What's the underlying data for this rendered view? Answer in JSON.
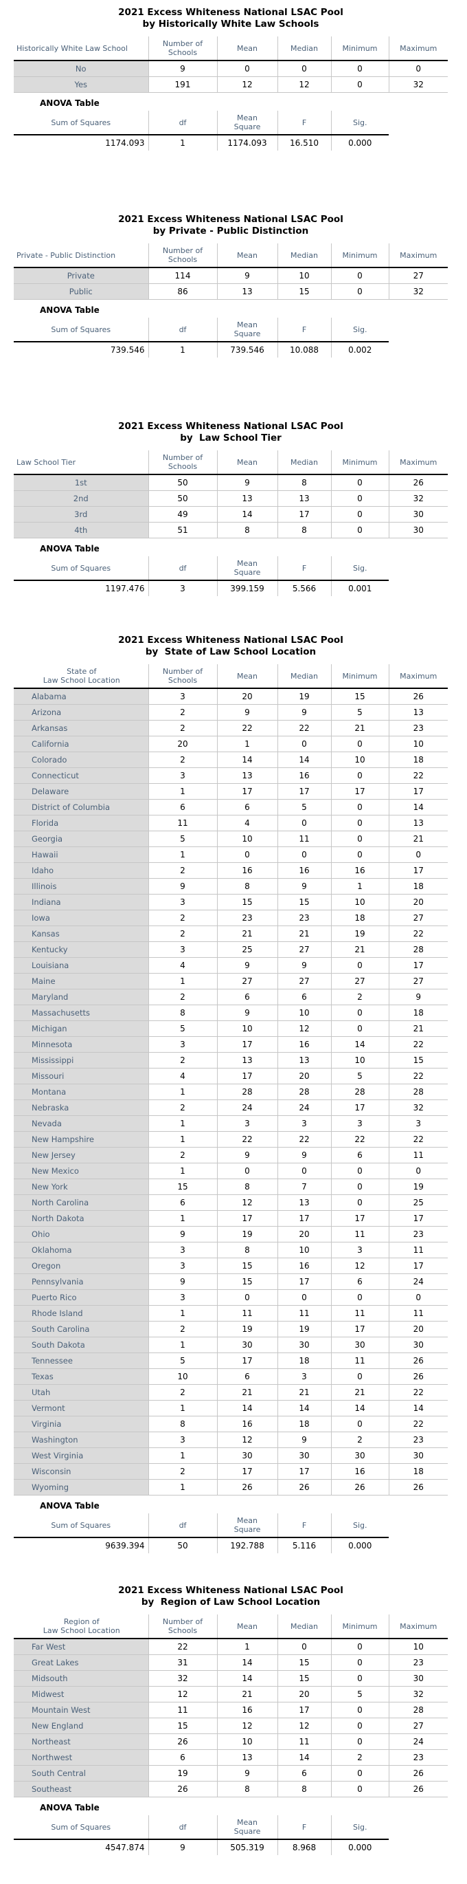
{
  "colors": {
    "header_text": "#4a6078",
    "label_background": "#dbdbdb",
    "grid_line": "#c6c6c6",
    "header_rule": "#000000"
  },
  "report": {
    "sections": [
      {
        "title": {
          "line1": "2021 Excess Whiteness National LSAC Pool",
          "line2": "by Historically White Law Schools"
        },
        "group_header": "Historically White Law School",
        "columns": [
          "Number of\nSchools",
          "Mean",
          "Median",
          "Minimum",
          "Maximum"
        ],
        "rows": [
          {
            "label": "No",
            "values": [
              9,
              0,
              0,
              0,
              0
            ]
          },
          {
            "label": "Yes",
            "values": [
              191,
              12,
              12,
              0,
              32
            ]
          }
        ],
        "anova": {
          "heading": "ANOVA Table",
          "columns": [
            "Sum of Squares",
            "df",
            "Mean\nSquare",
            "F",
            "Sig."
          ],
          "values": [
            "1174.093",
            "1",
            "1174.093",
            "16.510",
            "0.000"
          ]
        }
      },
      {
        "title": {
          "line1": "2021 Excess Whiteness National LSAC Pool",
          "line2": "by Private - Public Distinction"
        },
        "group_header": "Private - Public Distinction",
        "columns": [
          "Number of\nSchools",
          "Mean",
          "Median",
          "Minimum",
          "Maximum"
        ],
        "rows": [
          {
            "label": "Private",
            "values": [
              114,
              9,
              10,
              0,
              27
            ]
          },
          {
            "label": "Public",
            "values": [
              86,
              13,
              15,
              0,
              32
            ]
          }
        ],
        "anova": {
          "heading": "ANOVA Table",
          "columns": [
            "Sum of Squares",
            "df",
            "Mean\nSquare",
            "F",
            "Sig."
          ],
          "values": [
            "739.546",
            "1",
            "739.546",
            "10.088",
            "0.002"
          ]
        }
      },
      {
        "title": {
          "line1": "2021 Excess Whiteness National LSAC Pool",
          "line2": "by  Law School Tier"
        },
        "group_header": "Law School Tier",
        "columns": [
          "Number of\nSchools",
          "Mean",
          "Median",
          "Minimum",
          "Maximum"
        ],
        "rows": [
          {
            "label": "1st",
            "values": [
              50,
              9,
              8,
              0,
              26
            ]
          },
          {
            "label": "2nd",
            "values": [
              50,
              13,
              13,
              0,
              32
            ]
          },
          {
            "label": "3rd",
            "values": [
              49,
              14,
              17,
              0,
              30
            ]
          },
          {
            "label": "4th",
            "values": [
              51,
              8,
              8,
              0,
              30
            ]
          }
        ],
        "anova": {
          "heading": "ANOVA Table",
          "columns": [
            "Sum of Squares",
            "df",
            "Mean\nSquare",
            "F",
            "Sig."
          ],
          "values": [
            "1197.476",
            "3",
            "399.159",
            "5.566",
            "0.001"
          ]
        }
      },
      {
        "title": {
          "line1": "2021 Excess Whiteness National LSAC Pool",
          "line2": "by  State of Law School Location"
        },
        "group_header": "State of\nLaw School Location",
        "columns": [
          "Number of\nSchools",
          "Mean",
          "Median",
          "Minimum",
          "Maximum"
        ],
        "rows": [
          {
            "label": "Alabama",
            "values": [
              3,
              20,
              19,
              15,
              26
            ]
          },
          {
            "label": "Arizona",
            "values": [
              2,
              9,
              9,
              5,
              13
            ]
          },
          {
            "label": "Arkansas",
            "values": [
              2,
              22,
              22,
              21,
              23
            ]
          },
          {
            "label": "California",
            "values": [
              20,
              1,
              0,
              0,
              10
            ]
          },
          {
            "label": "Colorado",
            "values": [
              2,
              14,
              14,
              10,
              18
            ]
          },
          {
            "label": "Connecticut",
            "values": [
              3,
              13,
              16,
              0,
              22
            ]
          },
          {
            "label": "Delaware",
            "values": [
              1,
              17,
              17,
              17,
              17
            ]
          },
          {
            "label": "District of Columbia",
            "values": [
              6,
              6,
              5,
              0,
              14
            ]
          },
          {
            "label": "Florida",
            "values": [
              11,
              4,
              0,
              0,
              13
            ]
          },
          {
            "label": "Georgia",
            "values": [
              5,
              10,
              11,
              0,
              21
            ]
          },
          {
            "label": "Hawaii",
            "values": [
              1,
              0,
              0,
              0,
              0
            ]
          },
          {
            "label": "Idaho",
            "values": [
              2,
              16,
              16,
              16,
              17
            ]
          },
          {
            "label": "Illinois",
            "values": [
              9,
              8,
              9,
              1,
              18
            ]
          },
          {
            "label": "Indiana",
            "values": [
              3,
              15,
              15,
              10,
              20
            ]
          },
          {
            "label": "Iowa",
            "values": [
              2,
              23,
              23,
              18,
              27
            ]
          },
          {
            "label": "Kansas",
            "values": [
              2,
              21,
              21,
              19,
              22
            ]
          },
          {
            "label": "Kentucky",
            "values": [
              3,
              25,
              27,
              21,
              28
            ]
          },
          {
            "label": "Louisiana",
            "values": [
              4,
              9,
              9,
              0,
              17
            ]
          },
          {
            "label": "Maine",
            "values": [
              1,
              27,
              27,
              27,
              27
            ]
          },
          {
            "label": "Maryland",
            "values": [
              2,
              6,
              6,
              2,
              9
            ]
          },
          {
            "label": "Massachusetts",
            "values": [
              8,
              9,
              10,
              0,
              18
            ]
          },
          {
            "label": "Michigan",
            "values": [
              5,
              10,
              12,
              0,
              21
            ]
          },
          {
            "label": "Minnesota",
            "values": [
              3,
              17,
              16,
              14,
              22
            ]
          },
          {
            "label": "Mississippi",
            "values": [
              2,
              13,
              13,
              10,
              15
            ]
          },
          {
            "label": "Missouri",
            "values": [
              4,
              17,
              20,
              5,
              22
            ]
          },
          {
            "label": "Montana",
            "values": [
              1,
              28,
              28,
              28,
              28
            ]
          },
          {
            "label": "Nebraska",
            "values": [
              2,
              24,
              24,
              17,
              32
            ]
          },
          {
            "label": "Nevada",
            "values": [
              1,
              3,
              3,
              3,
              3
            ]
          },
          {
            "label": "New Hampshire",
            "values": [
              1,
              22,
              22,
              22,
              22
            ]
          },
          {
            "label": "New Jersey",
            "values": [
              2,
              9,
              9,
              6,
              11
            ]
          },
          {
            "label": "New Mexico",
            "values": [
              1,
              0,
              0,
              0,
              0
            ]
          },
          {
            "label": "New York",
            "values": [
              15,
              8,
              7,
              0,
              19
            ]
          },
          {
            "label": "North Carolina",
            "values": [
              6,
              12,
              13,
              0,
              25
            ]
          },
          {
            "label": "North Dakota",
            "values": [
              1,
              17,
              17,
              17,
              17
            ]
          },
          {
            "label": "Ohio",
            "values": [
              9,
              19,
              20,
              11,
              23
            ]
          },
          {
            "label": "Oklahoma",
            "values": [
              3,
              8,
              10,
              3,
              11
            ]
          },
          {
            "label": "Oregon",
            "values": [
              3,
              15,
              16,
              12,
              17
            ]
          },
          {
            "label": "Pennsylvania",
            "values": [
              9,
              15,
              17,
              6,
              24
            ]
          },
          {
            "label": "Puerto Rico",
            "values": [
              3,
              0,
              0,
              0,
              0
            ]
          },
          {
            "label": "Rhode Island",
            "values": [
              1,
              11,
              11,
              11,
              11
            ]
          },
          {
            "label": "South Carolina",
            "values": [
              2,
              19,
              19,
              17,
              20
            ]
          },
          {
            "label": "South Dakota",
            "values": [
              1,
              30,
              30,
              30,
              30
            ]
          },
          {
            "label": "Tennessee",
            "values": [
              5,
              17,
              18,
              11,
              26
            ]
          },
          {
            "label": "Texas",
            "values": [
              10,
              6,
              3,
              0,
              26
            ]
          },
          {
            "label": "Utah",
            "values": [
              2,
              21,
              21,
              21,
              22
            ]
          },
          {
            "label": "Vermont",
            "values": [
              1,
              14,
              14,
              14,
              14
            ]
          },
          {
            "label": "Virginia",
            "values": [
              8,
              16,
              18,
              0,
              22
            ]
          },
          {
            "label": "Washington",
            "values": [
              3,
              12,
              9,
              2,
              23
            ]
          },
          {
            "label": "West Virginia",
            "values": [
              1,
              30,
              30,
              30,
              30
            ]
          },
          {
            "label": "Wisconsin",
            "values": [
              2,
              17,
              17,
              16,
              18
            ]
          },
          {
            "label": "Wyoming",
            "values": [
              1,
              26,
              26,
              26,
              26
            ]
          }
        ],
        "anova": {
          "heading": "ANOVA Table",
          "columns": [
            "Sum of Squares",
            "df",
            "Mean\nSquare",
            "F",
            "Sig."
          ],
          "values": [
            "9639.394",
            "50",
            "192.788",
            "5.116",
            "0.000"
          ]
        }
      },
      {
        "title": {
          "line1": "2021 Excess Whiteness National LSAC Pool",
          "line2": "by  Region of Law School Location"
        },
        "group_header": "Region of\nLaw School Location",
        "columns": [
          "Number of\nSchools",
          "Mean",
          "Median",
          "Minimum",
          "Maximum"
        ],
        "rows": [
          {
            "label": "Far West",
            "values": [
              22,
              1,
              0,
              0,
              10
            ]
          },
          {
            "label": "Great Lakes",
            "values": [
              31,
              14,
              15,
              0,
              23
            ]
          },
          {
            "label": "Midsouth",
            "values": [
              32,
              14,
              15,
              0,
              30
            ]
          },
          {
            "label": "Midwest",
            "values": [
              12,
              21,
              20,
              5,
              32
            ]
          },
          {
            "label": "Mountain West",
            "values": [
              11,
              16,
              17,
              0,
              28
            ]
          },
          {
            "label": "New England",
            "values": [
              15,
              12,
              12,
              0,
              27
            ]
          },
          {
            "label": "Northeast",
            "values": [
              26,
              10,
              11,
              0,
              24
            ]
          },
          {
            "label": "Northwest",
            "values": [
              6,
              13,
              14,
              2,
              23
            ]
          },
          {
            "label": "South Central",
            "values": [
              19,
              9,
              6,
              0,
              26
            ]
          },
          {
            "label": "Southeast",
            "values": [
              26,
              8,
              8,
              0,
              26
            ]
          }
        ],
        "anova": {
          "heading": "ANOVA Table",
          "columns": [
            "Sum of Squares",
            "df",
            "Mean\nSquare",
            "F",
            "Sig."
          ],
          "values": [
            "4547.874",
            "9",
            "505.319",
            "8.968",
            "0.000"
          ]
        }
      }
    ]
  }
}
